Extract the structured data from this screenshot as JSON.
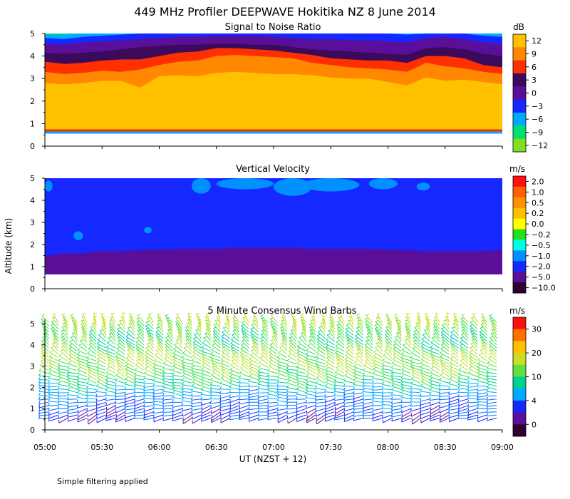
{
  "figure": {
    "title": "449 MHz Profiler DEEPWAVE Hokitika NZ  8 June 2014",
    "ylabel": "Altitude (km)",
    "xlabel": "UT  (NZST + 12)",
    "footnote": "Simple filtering applied"
  },
  "chart_data": [
    {
      "type": "heatmap",
      "title": "Signal to Noise Ratio",
      "xlabel": "UT  (NZST + 12)",
      "ylabel": "Altitude (km)",
      "xlim": [
        "05:00",
        "09:00"
      ],
      "ylim": [
        0,
        5
      ],
      "xticks": [
        "05:00",
        "05:30",
        "06:00",
        "06:30",
        "07:00",
        "07:30",
        "08:00",
        "08:30",
        "09:00"
      ],
      "yticks": [
        "0",
        "1",
        "2",
        "3",
        "4",
        "5"
      ],
      "colorbar": {
        "unit": "dB",
        "ticks": [
          "12",
          "9",
          "6",
          "3",
          "0",
          "−3",
          "−6",
          "−9",
          "−12"
        ],
        "colors": [
          "#ffc000",
          "#ff8800",
          "#ff3000",
          "#3c0a5a",
          "#5a0f9a",
          "#1428ff",
          "#00aaff",
          "#00e070",
          "#80e020"
        ]
      },
      "bands_db": [
        {
          "level": 12,
          "color": "#ffc000"
        },
        {
          "level": 9,
          "color": "#ff8800"
        },
        {
          "level": 6,
          "color": "#ff3000"
        },
        {
          "level": 3,
          "color": "#3c0a5a"
        },
        {
          "level": 0,
          "color": "#5a0f9a"
        },
        {
          "level": -3,
          "color": "#1428ff"
        },
        {
          "level": -6,
          "color": "#00aaff"
        },
        {
          "level": -9,
          "color": "#00e070"
        }
      ],
      "boundaries_km": {
        "time": [
          "05:00",
          "05:10",
          "05:20",
          "05:30",
          "05:40",
          "05:50",
          "06:00",
          "06:10",
          "06:20",
          "06:30",
          "06:40",
          "06:50",
          "07:00",
          "07:10",
          "07:20",
          "07:30",
          "07:40",
          "07:50",
          "08:00",
          "08:10",
          "08:20",
          "08:30",
          "08:40",
          "08:50",
          "09:00"
        ],
        "top_12dB": [
          2.8,
          2.75,
          2.8,
          2.9,
          2.9,
          2.6,
          3.1,
          3.15,
          3.1,
          3.25,
          3.3,
          3.25,
          3.2,
          3.2,
          3.15,
          3.05,
          3.0,
          3.0,
          2.85,
          2.7,
          3.05,
          2.9,
          2.95,
          2.85,
          2.75
        ],
        "top_9dB": [
          3.3,
          3.2,
          3.25,
          3.35,
          3.3,
          3.4,
          3.6,
          3.75,
          3.8,
          4.0,
          4.05,
          4.0,
          3.95,
          3.9,
          3.7,
          3.6,
          3.5,
          3.45,
          3.4,
          3.3,
          3.7,
          3.55,
          3.45,
          3.3,
          3.2
        ],
        "top_6dB": [
          3.75,
          3.65,
          3.7,
          3.8,
          3.85,
          3.85,
          4.0,
          4.15,
          4.2,
          4.35,
          4.35,
          4.3,
          4.25,
          4.15,
          4.05,
          3.9,
          3.85,
          3.8,
          3.8,
          3.7,
          4.0,
          4.0,
          3.9,
          3.6,
          3.5
        ],
        "top_3dB": [
          4.15,
          4.1,
          4.15,
          4.2,
          4.3,
          4.4,
          4.45,
          4.5,
          4.5,
          4.55,
          4.55,
          4.5,
          4.5,
          4.4,
          4.3,
          4.25,
          4.2,
          4.15,
          4.1,
          4.05,
          4.35,
          4.4,
          4.3,
          4.1,
          4.0
        ],
        "top_0dB": [
          4.55,
          4.5,
          4.6,
          4.65,
          4.7,
          4.75,
          4.8,
          4.85,
          4.85,
          4.9,
          4.9,
          4.9,
          4.85,
          4.8,
          4.75,
          4.75,
          4.7,
          4.7,
          4.65,
          4.6,
          4.8,
          4.85,
          4.75,
          4.6,
          4.55
        ],
        "top_-3dB": [
          4.8,
          4.75,
          4.85,
          4.9,
          4.95,
          5.0,
          5.0,
          5.0,
          5.0,
          5.0,
          5.0,
          5.0,
          5.0,
          5.0,
          5.0,
          5.0,
          5.0,
          5.0,
          5.0,
          4.95,
          5.0,
          5.0,
          5.0,
          4.9,
          4.85
        ],
        "top_-6dB": [
          4.95,
          4.95,
          5.0,
          5.0,
          5.0,
          5.0,
          5.0,
          5.0,
          5.0,
          5.0,
          5.0,
          5.0,
          5.0,
          5.0,
          5.0,
          5.0,
          5.0,
          5.0,
          5.0,
          5.0,
          5.0,
          5.0,
          5.0,
          5.0,
          5.0
        ],
        "bottom_km": 0.65
      }
    },
    {
      "type": "heatmap",
      "title": "Vertical Velocity",
      "xlabel": "UT  (NZST + 12)",
      "ylabel": "Altitude (km)",
      "xlim": [
        "05:00",
        "09:00"
      ],
      "ylim": [
        0,
        5
      ],
      "xticks": [
        "05:00",
        "05:30",
        "06:00",
        "06:30",
        "07:00",
        "07:30",
        "08:00",
        "08:30",
        "09:00"
      ],
      "yticks": [
        "0",
        "1",
        "2",
        "3",
        "4",
        "5"
      ],
      "colorbar": {
        "unit": "m/s",
        "ticks": [
          "2.0",
          "1.0",
          "0.5",
          "0.2",
          "0.0",
          "−0.2",
          "−0.5",
          "−1.0",
          "−2.0",
          "−5.0",
          "−10.0"
        ],
        "colors": [
          "#ff1010",
          "#ff6000",
          "#ff9000",
          "#ffc000",
          "#ffff00",
          "#20e020",
          "#00ffe0",
          "#0090ff",
          "#1428ff",
          "#5a0f9a",
          "#300030"
        ]
      },
      "regions": [
        {
          "range_m_s": "−2.0 to −5.0",
          "color": "#5a0f9a",
          "bottom_km": 0.65,
          "top_km_by_time": [
            1.5,
            1.6,
            1.6,
            1.7,
            1.7,
            1.75,
            1.75,
            1.8,
            1.8,
            1.8,
            1.85,
            1.85,
            1.85,
            1.85,
            1.8,
            1.8,
            1.8,
            1.8,
            1.75,
            1.75,
            1.7,
            1.7,
            1.7,
            1.7,
            1.75
          ]
        },
        {
          "range_m_s": "−1.0 to −2.0",
          "color": "#1428ff",
          "bottom_km": "top of −2.0 region",
          "top_km": 5.0
        },
        {
          "range_m_s": "−0.5 to −1.0",
          "color": "#0090ff",
          "note": "patches near 4–5 km after 06:15"
        }
      ]
    },
    {
      "type": "scatter",
      "subtype": "wind_barbs",
      "title": "5 Minute Consensus Wind Barbs",
      "xlabel": "UT  (NZST + 12)",
      "ylabel": "Altitude (km)",
      "xlim": [
        "05:00",
        "09:00"
      ],
      "ylim": [
        0,
        5.2
      ],
      "xticks": [
        "05:00",
        "05:30",
        "06:00",
        "06:30",
        "07:00",
        "07:30",
        "08:00",
        "08:30",
        "09:00"
      ],
      "yticks": [
        "0",
        "1",
        "2",
        "3",
        "4",
        "5"
      ],
      "time_step_min": 5,
      "colorbar": {
        "unit": "m/s",
        "ticks": [
          "30",
          "20",
          "10",
          "4",
          "0"
        ],
        "colors": [
          "#ff1010",
          "#ff7000",
          "#ffc000",
          "#c8e020",
          "#60e040",
          "#00d090",
          "#00aaff",
          "#1428ff",
          "#5a0f9a",
          "#300030"
        ]
      },
      "wind_profile": [
        {
          "altitude_km": 0.8,
          "speed_m_s": 3,
          "direction_deg": 250
        },
        {
          "altitude_km": 1.6,
          "speed_m_s": 6,
          "direction_deg": 270
        },
        {
          "altitude_km": 2.4,
          "speed_m_s": 11,
          "direction_deg": 290
        },
        {
          "altitude_km": 3.2,
          "speed_m_s": 13,
          "direction_deg": 300
        },
        {
          "altitude_km": 4.2,
          "speed_m_s": 10,
          "direction_deg": 320
        },
        {
          "altitude_km": 5.0,
          "speed_m_s": 14,
          "direction_deg": 330
        }
      ]
    }
  ]
}
